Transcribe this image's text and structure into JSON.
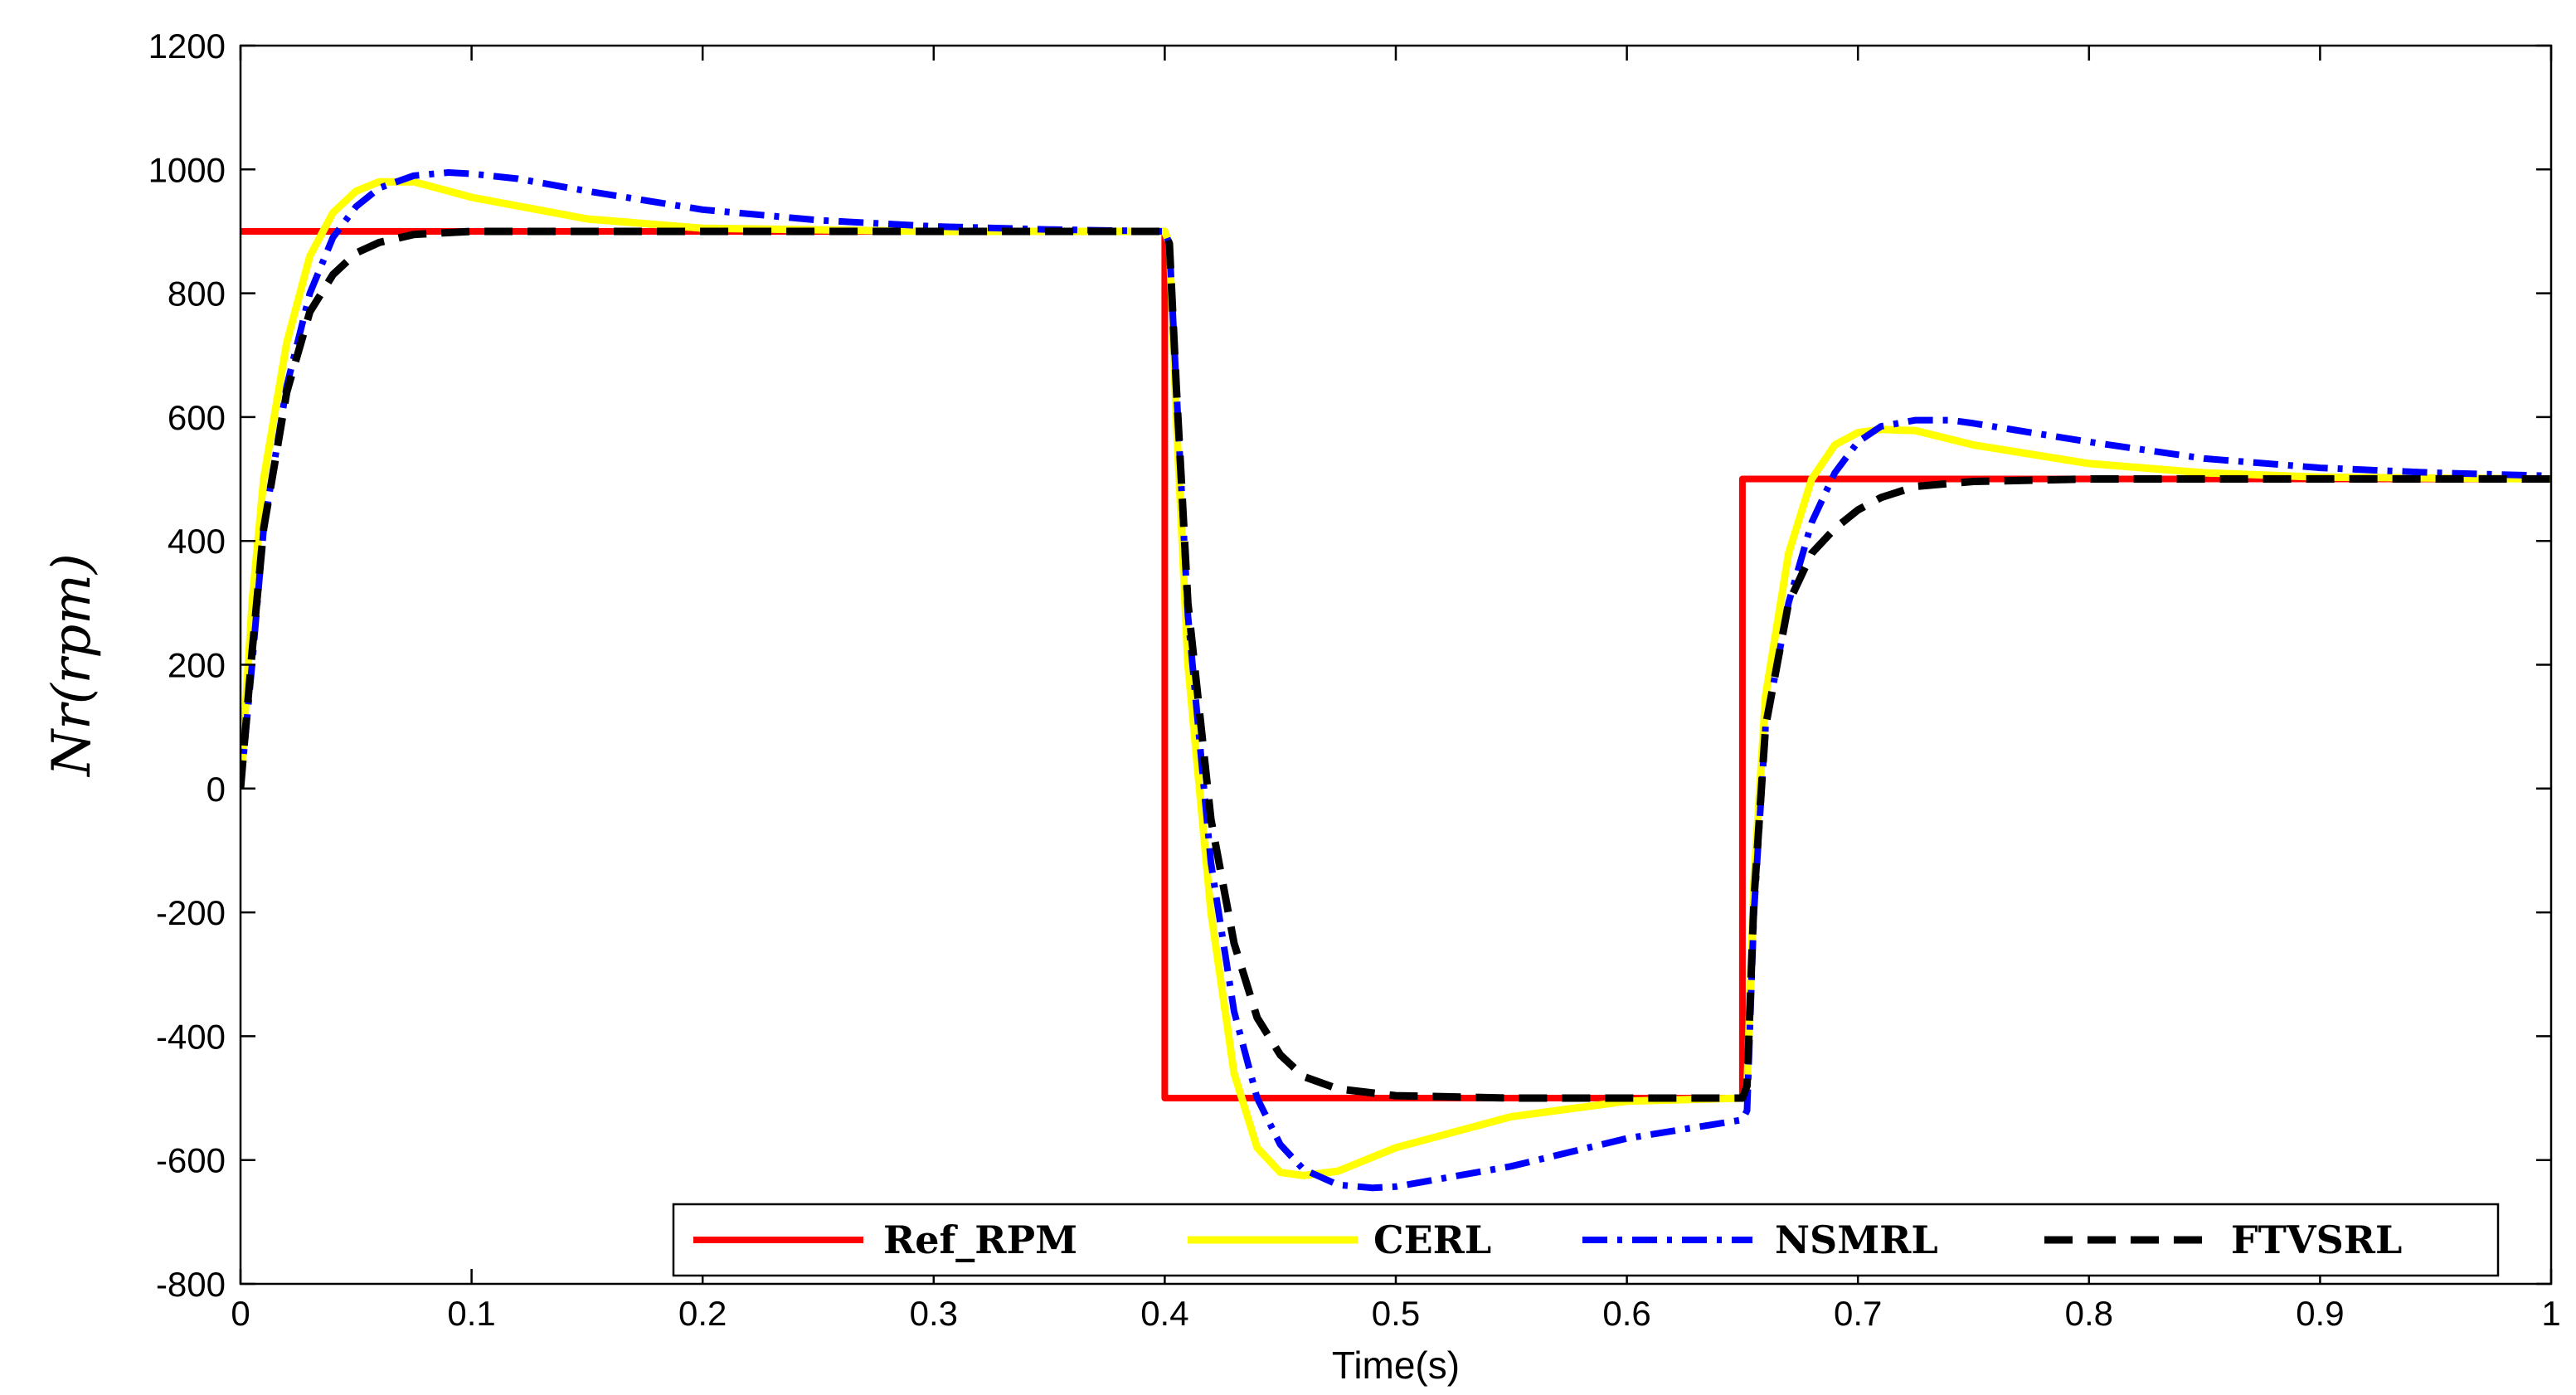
{
  "chart_data": {
    "type": "line",
    "title": "",
    "xlabel": "Time(s)",
    "ylabel": "Nr(rpm)",
    "xlim": [
      0,
      1
    ],
    "ylim": [
      -800,
      1200
    ],
    "xticks": [
      "0",
      "0.1",
      "0.2",
      "0.3",
      "0.4",
      "0.5",
      "0.6",
      "0.7",
      "0.8",
      "0.9",
      "1"
    ],
    "xtick_values": [
      0,
      0.1,
      0.2,
      0.3,
      0.4,
      0.5,
      0.6,
      0.7,
      0.8,
      0.9,
      1
    ],
    "yticks": [
      "1200",
      "1000",
      "800",
      "600",
      "400",
      "200",
      "0",
      "-200",
      "-400",
      "-600",
      "-800"
    ],
    "ytick_values": [
      1200,
      1000,
      800,
      600,
      400,
      200,
      0,
      -200,
      -400,
      -600,
      -800
    ],
    "grid": false,
    "legend_position": "bottom-right",
    "series": [
      {
        "name": "Ref_RPM",
        "color": "#ff0000",
        "style": "solid",
        "x": [
          0,
          0.4,
          0.4,
          0.65,
          0.65,
          1
        ],
        "y": [
          900,
          900,
          -500,
          -500,
          500,
          500
        ]
      },
      {
        "name": "CERL",
        "color": "#ffff00",
        "style": "solid",
        "x": [
          0,
          0.005,
          0.01,
          0.02,
          0.03,
          0.04,
          0.05,
          0.06,
          0.075,
          0.1,
          0.15,
          0.2,
          0.3,
          0.4,
          0.402,
          0.405,
          0.41,
          0.42,
          0.43,
          0.44,
          0.45,
          0.46,
          0.475,
          0.5,
          0.55,
          0.6,
          0.65,
          0.652,
          0.655,
          0.66,
          0.67,
          0.68,
          0.69,
          0.7,
          0.71,
          0.725,
          0.75,
          0.8,
          0.85,
          0.9,
          1
        ],
        "y": [
          0,
          300,
          500,
          720,
          860,
          930,
          965,
          980,
          980,
          955,
          920,
          905,
          900,
          900,
          880,
          600,
          200,
          -200,
          -460,
          -580,
          -620,
          -625,
          -618,
          -580,
          -530,
          -505,
          -500,
          -480,
          -150,
          150,
          380,
          500,
          555,
          575,
          580,
          578,
          555,
          525,
          510,
          503,
          500
        ]
      },
      {
        "name": "NSMRL",
        "color": "#0000ff",
        "style": "dashdot",
        "x": [
          0,
          0.005,
          0.01,
          0.02,
          0.03,
          0.04,
          0.05,
          0.06,
          0.075,
          0.09,
          0.1,
          0.12,
          0.15,
          0.2,
          0.25,
          0.3,
          0.35,
          0.4,
          0.402,
          0.405,
          0.41,
          0.42,
          0.43,
          0.44,
          0.45,
          0.46,
          0.475,
          0.49,
          0.5,
          0.55,
          0.6,
          0.65,
          0.652,
          0.655,
          0.66,
          0.67,
          0.68,
          0.69,
          0.7,
          0.71,
          0.725,
          0.74,
          0.75,
          0.8,
          0.85,
          0.9,
          0.95,
          1
        ],
        "y": [
          0,
          200,
          420,
          650,
          800,
          890,
          940,
          970,
          990,
          995,
          993,
          985,
          965,
          935,
          918,
          908,
          903,
          900,
          880,
          650,
          280,
          -120,
          -360,
          -500,
          -575,
          -615,
          -640,
          -645,
          -643,
          -610,
          -565,
          -535,
          -520,
          -200,
          100,
          300,
          430,
          510,
          560,
          585,
          595,
          595,
          590,
          560,
          533,
          518,
          510,
          505
        ]
      },
      {
        "name": "FTVSRL",
        "color": "#000000",
        "style": "dashed",
        "x": [
          0,
          0.005,
          0.01,
          0.02,
          0.03,
          0.04,
          0.05,
          0.06,
          0.075,
          0.1,
          0.15,
          0.2,
          0.3,
          0.4,
          0.402,
          0.405,
          0.41,
          0.42,
          0.43,
          0.44,
          0.45,
          0.46,
          0.475,
          0.5,
          0.55,
          0.6,
          0.65,
          0.652,
          0.655,
          0.66,
          0.67,
          0.68,
          0.69,
          0.7,
          0.71,
          0.725,
          0.75,
          0.8,
          0.9,
          1
        ],
        "y": [
          0,
          220,
          420,
          640,
          770,
          830,
          865,
          882,
          895,
          900,
          900,
          900,
          900,
          900,
          880,
          650,
          300,
          -50,
          -250,
          -370,
          -430,
          -465,
          -485,
          -496,
          -500,
          -500,
          -500,
          -480,
          -180,
          100,
          300,
          380,
          420,
          450,
          470,
          488,
          496,
          500,
          500,
          500
        ]
      }
    ]
  }
}
